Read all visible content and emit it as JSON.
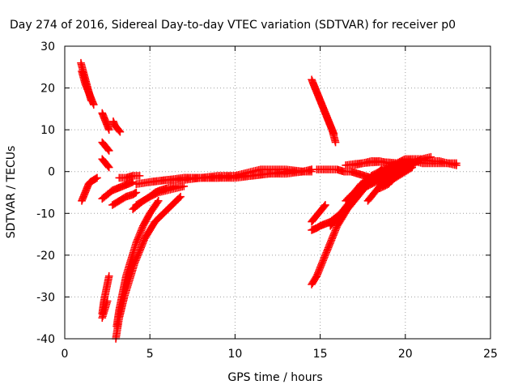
{
  "chart_data": {
    "type": "scatter",
    "title": "Day 274 of 2016, Sidereal Day-to-day VTEC variation (SDTVAR) for receiver p0",
    "xlabel": "GPS time / hours",
    "ylabel": "SDTVAR / TECUs",
    "xlim": [
      0,
      25
    ],
    "ylim": [
      -40,
      30
    ],
    "x_ticks": [
      0,
      5,
      10,
      15,
      20,
      25
    ],
    "y_ticks": [
      -40,
      -30,
      -20,
      -10,
      0,
      10,
      20,
      30
    ],
    "x_tick_labels": [
      "0",
      "5",
      "10",
      "15",
      "20",
      "25"
    ],
    "y_tick_labels": [
      "-40",
      "-30",
      "-20",
      "-10",
      "0",
      "10",
      "20",
      "30"
    ],
    "grid": true,
    "marker": "+",
    "color": "#ff0000",
    "series": [
      {
        "x": [
          0.95,
          1.05,
          1.15,
          1.25,
          1.35,
          1.45,
          1.55
        ],
        "y": [
          26,
          24.5,
          23,
          21.5,
          20,
          18.5,
          17
        ]
      },
      {
        "x": [
          1.0,
          1.1,
          1.2,
          1.3,
          1.4,
          1.5,
          1.6,
          1.7
        ],
        "y": [
          24,
          22.5,
          21,
          20,
          19,
          18,
          17,
          16
        ]
      },
      {
        "x": [
          2.2,
          2.3,
          2.4,
          2.5,
          2.6
        ],
        "y": [
          14,
          13,
          12,
          11,
          10
        ]
      },
      {
        "x": [
          2.85,
          2.95,
          3.05,
          3.15,
          3.25
        ],
        "y": [
          12,
          11,
          10.5,
          10,
          9.5
        ]
      },
      {
        "x": [
          2.2,
          2.3,
          2.4,
          2.5,
          2.6
        ],
        "y": [
          7,
          6.5,
          6,
          5.5,
          5
        ]
      },
      {
        "x": [
          2.2,
          2.3,
          2.4,
          2.5,
          2.6
        ],
        "y": [
          3,
          2.5,
          2,
          1.5,
          1
        ]
      },
      {
        "x": [
          1.0,
          1.1,
          1.2,
          1.3,
          1.4,
          1.5,
          1.7,
          1.9
        ],
        "y": [
          -7,
          -6,
          -5,
          -4,
          -3,
          -2.5,
          -2,
          -1.5
        ]
      },
      {
        "x": [
          2.2,
          2.5,
          2.8,
          3.1,
          3.4,
          3.7,
          4.0
        ],
        "y": [
          -6.5,
          -5.5,
          -4.5,
          -4,
          -3.5,
          -3,
          -2.5
        ]
      },
      {
        "x": [
          2.8,
          3.2,
          3.6,
          4.0,
          4.2
        ],
        "y": [
          -8,
          -7,
          -6,
          -5.5,
          -5
        ]
      },
      {
        "x": [
          3.2,
          3.6,
          4.0,
          4.4
        ],
        "y": [
          -1.5,
          -1.5,
          -1,
          -1
        ]
      },
      {
        "x": [
          4.0,
          4.3,
          4.6,
          5.0,
          5.3,
          5.6,
          6.0,
          6.5
        ],
        "y": [
          -9,
          -8,
          -7,
          -6,
          -5,
          -4.5,
          -4,
          -3.5
        ]
      },
      {
        "x": [
          4.2,
          4.6,
          5.0,
          5.5,
          6.0,
          6.5,
          7.0
        ],
        "y": [
          -8,
          -7,
          -6,
          -5,
          -4.5,
          -4,
          -3.5
        ]
      },
      {
        "x": [
          4.2,
          5.0,
          6.0,
          7.0,
          8.0,
          9.0,
          10.0,
          11.0,
          12.0,
          13.0,
          14.0,
          14.5
        ],
        "y": [
          -3,
          -2.5,
          -2,
          -1.5,
          -1.5,
          -1.5,
          -1.5,
          -1,
          -0.5,
          -0.5,
          0,
          0
        ]
      },
      {
        "x": [
          5.0,
          6.0,
          7.0,
          8.0,
          9.0,
          10.0,
          11.0,
          12.0,
          13.0,
          14.0,
          14.5
        ],
        "y": [
          -2.5,
          -2,
          -2,
          -1.5,
          -1.5,
          -1,
          -1,
          -0.5,
          0,
          0,
          0.5
        ]
      },
      {
        "x": [
          7.0,
          8.0,
          9.0,
          10.0,
          10.5,
          11.0,
          11.5,
          12.0,
          13.0,
          14.0,
          14.5
        ],
        "y": [
          -1.5,
          -1.5,
          -1,
          -1,
          -0.5,
          0,
          0.5,
          0.5,
          0.5,
          0,
          0.5
        ]
      },
      {
        "x": [
          6.8,
          6.3,
          5.8,
          5.3,
          5.0,
          4.7,
          4.4,
          4.1,
          3.8,
          3.5,
          3.2,
          3.0
        ],
        "y": [
          -6,
          -8,
          -10,
          -12,
          -14,
          -16,
          -19,
          -22,
          -26,
          -30,
          -35,
          -40
        ]
      },
      {
        "x": [
          5.5,
          5.0,
          4.6,
          4.2,
          3.9,
          3.6,
          3.4,
          3.2,
          3.05
        ],
        "y": [
          -7,
          -10,
          -13,
          -17,
          -21,
          -25,
          -29,
          -33,
          -37
        ]
      },
      {
        "x": [
          2.6,
          2.5,
          2.4,
          2.3,
          2.2
        ],
        "y": [
          -25,
          -27,
          -29,
          -31,
          -34
        ]
      },
      {
        "x": [
          2.5,
          2.35,
          2.2
        ],
        "y": [
          -31,
          -33,
          -35
        ]
      },
      {
        "x": [
          14.5,
          14.7,
          14.9,
          15.1,
          15.3,
          15.5,
          15.7,
          15.9
        ],
        "y": [
          22,
          20,
          18,
          16,
          14,
          12,
          10,
          7
        ]
      },
      {
        "x": [
          14.6,
          14.8,
          15.0,
          15.2,
          15.4,
          15.6,
          15.8
        ],
        "y": [
          21,
          19,
          17,
          15,
          13,
          11,
          9
        ]
      },
      {
        "x": [
          14.8,
          15.2,
          15.6,
          16.0,
          16.4,
          16.8,
          17.2,
          17.6,
          18.0,
          18.2
        ],
        "y": [
          0.5,
          0.5,
          0.5,
          0.5,
          0,
          0,
          -0.5,
          -1,
          -1.5,
          -2
        ]
      },
      {
        "x": [
          14.5,
          14.8,
          15.1,
          15.4,
          15.7,
          16.0,
          16.3,
          16.6,
          17.0,
          17.4,
          17.8,
          18.2,
          18.6
        ],
        "y": [
          -27,
          -25,
          -22,
          -19,
          -16,
          -13,
          -11,
          -9,
          -7,
          -5,
          -3,
          -1,
          0.5
        ]
      },
      {
        "x": [
          14.5,
          14.8,
          15.0,
          15.3,
          15.6,
          15.9,
          16.2,
          16.6,
          17.0
        ],
        "y": [
          -14,
          -13.5,
          -13,
          -12.5,
          -12,
          -11,
          -10,
          -8,
          -6
        ]
      },
      {
        "x": [
          14.5,
          14.7,
          14.9,
          15.1,
          15.3
        ],
        "y": [
          -12,
          -11,
          -10,
          -9,
          -8
        ]
      },
      {
        "x": [
          15.6,
          16.0,
          16.5,
          17.0,
          17.5,
          18.0,
          18.5,
          19.0,
          19.5,
          20.0
        ],
        "y": [
          -13,
          -11,
          -9,
          -6,
          -4,
          -2,
          -1,
          0,
          1,
          1.5
        ]
      },
      {
        "x": [
          16.5,
          17.0,
          17.4,
          17.8,
          18.2,
          18.6,
          19.0,
          19.4,
          19.8
        ],
        "y": [
          -7,
          -5,
          -3,
          -2,
          -1,
          0,
          0.5,
          1,
          1
        ]
      },
      {
        "x": [
          17.0,
          17.5,
          18.0,
          18.5,
          19.0,
          19.5,
          20.0
        ],
        "y": [
          1.5,
          2,
          2.5,
          2.5,
          2,
          1.5,
          1
        ]
      },
      {
        "x": [
          16.5,
          17.0,
          17.5,
          18.0,
          18.5,
          19.0,
          19.5,
          20.0
        ],
        "y": [
          1.5,
          1.8,
          2,
          2.2,
          2.3,
          2.2,
          2,
          1.8
        ]
      },
      {
        "x": [
          17.8,
          18.2,
          18.6,
          19.0,
          19.4,
          19.8,
          20.2
        ],
        "y": [
          -7,
          -5,
          -3,
          -1.5,
          0,
          1,
          2
        ]
      },
      {
        "x": [
          17.0,
          17.5,
          18.0,
          18.5,
          19.0,
          19.5
        ],
        "y": [
          -5,
          -4,
          -3,
          -2,
          -1,
          0
        ]
      },
      {
        "x": [
          18.0,
          18.5,
          19.0,
          19.5,
          20.0,
          20.5
        ],
        "y": [
          -1,
          0,
          1,
          2,
          3,
          3
        ]
      },
      {
        "x": [
          19.5,
          20.0,
          20.5,
          21.0,
          21.5,
          22.0,
          22.5,
          23.0
        ],
        "y": [
          1,
          2,
          2.5,
          2,
          2,
          2,
          2,
          1.5
        ]
      },
      {
        "x": [
          20.0,
          20.5,
          21.0,
          21.5,
          22.0,
          22.5,
          23.0
        ],
        "y": [
          2.5,
          3,
          3,
          2.5,
          2.5,
          2,
          2
        ]
      },
      {
        "x": [
          18.5,
          19.0,
          19.5,
          20.0,
          20.5,
          21.0,
          21.5
        ],
        "y": [
          -4,
          -3,
          -1,
          0.5,
          2,
          3,
          3.5
        ]
      },
      {
        "x": [
          18.8,
          19.2,
          19.6,
          20.0,
          20.4
        ],
        "y": [
          -3,
          -2,
          -1,
          0,
          1
        ]
      }
    ]
  }
}
